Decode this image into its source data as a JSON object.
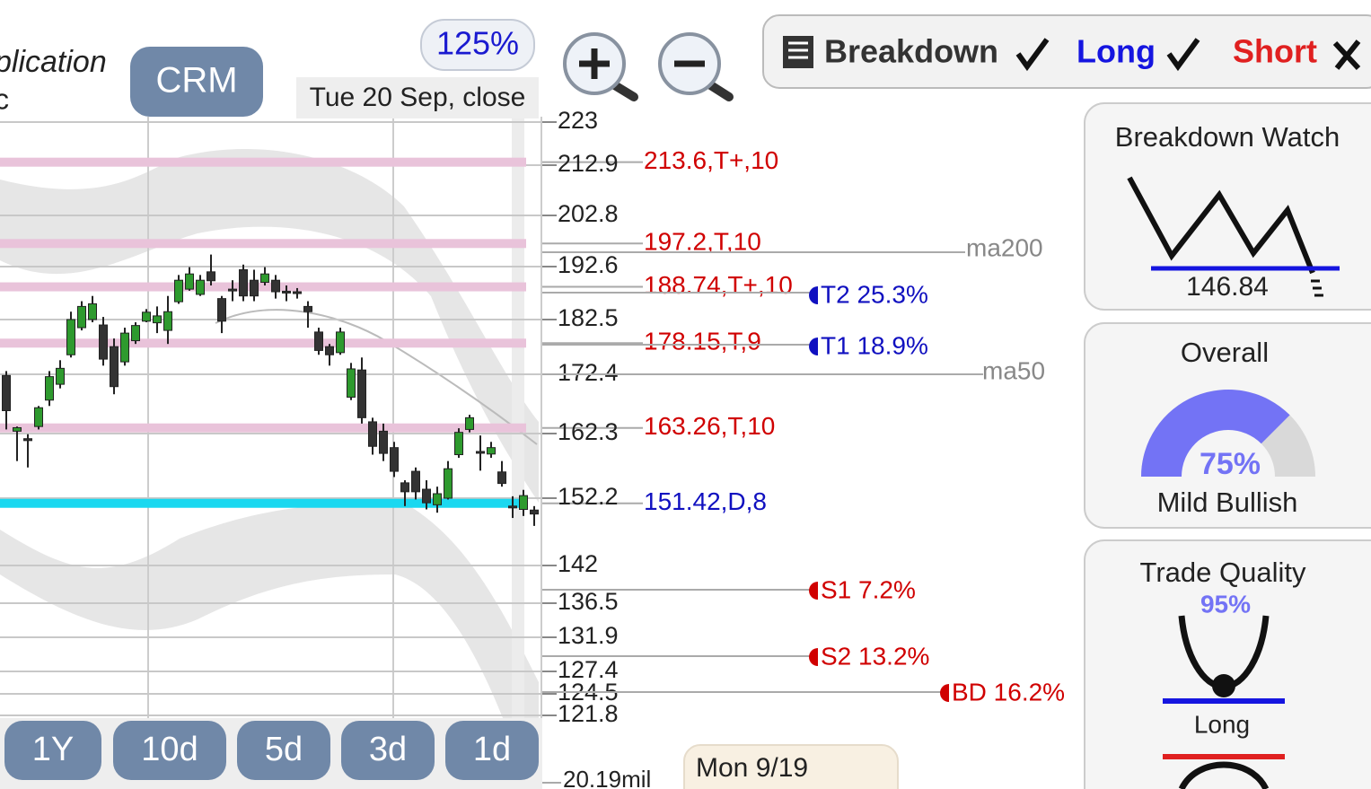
{
  "header": {
    "company_line1": "plication",
    "company_line2": "c",
    "ticker": "CRM",
    "zoom": "125%",
    "date": "Tue 20 Sep, close"
  },
  "toggles": {
    "breakdown": "Breakdown",
    "long": "Long",
    "short": "Short"
  },
  "chart_data": {
    "type": "candlestick",
    "ylim": [
      121.8,
      223
    ],
    "yticks": [
      223,
      212.9,
      202.8,
      192.6,
      182.5,
      172.4,
      162.3,
      152.2,
      142,
      136.5,
      131.9,
      127.4,
      124.5,
      121.8
    ],
    "open": [
      172.2,
      162.7,
      161.5,
      163.5,
      168,
      170.7,
      176,
      181,
      182.5,
      181.5,
      177.5,
      174.7,
      178.6,
      182.2,
      181.9,
      180.5,
      185.9,
      188.3,
      187.3,
      191.6,
      186.5,
      188.3,
      192,
      190,
      189.6,
      190,
      187.9,
      187.8,
      185,
      180.2,
      177.5,
      176.4,
      168.5,
      173.2,
      164.3,
      162.7,
      160.1,
      154.6,
      156.4,
      153.6,
      151.2,
      152.2,
      159,
      163,
      159.5,
      159.1,
      156.3,
      151,
      150.5,
      150.4
    ],
    "high": [
      173,
      163.5,
      162.2,
      167,
      173,
      175,
      184,
      186,
      187,
      183,
      179,
      181,
      182,
      184.5,
      185,
      187,
      191,
      192.5,
      191,
      195,
      187,
      190,
      193,
      192,
      192.5,
      191,
      189,
      188.5,
      186,
      181,
      178,
      181,
      174.5,
      175.5,
      165,
      164,
      161,
      155,
      157,
      155,
      154,
      158,
      163.2,
      165.5,
      162,
      161,
      158,
      152.5,
      153.5,
      151
    ],
    "low": [
      163,
      158,
      157,
      163,
      167,
      170,
      175.5,
      180.5,
      182,
      174,
      169,
      174,
      178,
      182,
      180,
      178,
      185.5,
      188,
      187,
      189,
      180,
      186,
      186,
      186,
      189,
      186.5,
      186,
      186.5,
      181,
      176,
      174,
      176,
      168,
      164,
      159,
      158,
      155.5,
      151,
      152,
      150.5,
      150,
      152,
      158.5,
      162.5,
      156.5,
      158.5,
      154,
      149.2,
      149.5,
      148
    ],
    "close": [
      166.2,
      163.3,
      161.2,
      166.7,
      172,
      173.5,
      182.5,
      185,
      185.5,
      175.2,
      170.3,
      180,
      181.4,
      183.9,
      183.2,
      184,
      190,
      191.2,
      190,
      189.9,
      182.2,
      188,
      187,
      187,
      191.2,
      187.8,
      187.7,
      187.6,
      184,
      176.8,
      176,
      180.2,
      173.4,
      165,
      160.3,
      159.2,
      156.4,
      153.2,
      153.2,
      151.5,
      152.9,
      156.8,
      162.5,
      165,
      159.4,
      160.1,
      154.5,
      150.9,
      152.6,
      149.8
    ],
    "up_color": "#2e9a2e",
    "down_color": "#333333",
    "levels": [
      {
        "value": 213.6,
        "label": "213.6,T+,10",
        "color": "#e9c3da",
        "label_color": "#d00000"
      },
      {
        "value": 197.2,
        "label": "197.2,T,10",
        "color": "#e9c3da",
        "label_color": "#d00000"
      },
      {
        "value": 188.74,
        "label": "188.74,T+,10",
        "color": "#e9c3da",
        "label_color": "#d00000"
      },
      {
        "value": 178.15,
        "label": "178.15,T,9",
        "color": "#e9c3da",
        "label_color": "#d00000"
      },
      {
        "value": 163.26,
        "label": "163.26,T,10",
        "color": "#e9c3da",
        "label_color": "#d00000"
      },
      {
        "value": 151.42,
        "label": "151.42,D,8",
        "color": "#1ad8f0",
        "label_color": "#1010c0"
      }
    ],
    "annotations": [
      "ma200",
      "ma50",
      "T2 25.3%",
      "T1 18.9%",
      "S1 7.2%",
      "S2 13.2%",
      "BD 16.2%"
    ],
    "volume_label": "20.19mil"
  },
  "periods": [
    "1Y",
    "10d",
    "5d",
    "3d",
    "1d"
  ],
  "tooltip": "Mon 9/19",
  "cards": {
    "breakdown_watch": {
      "title": "Breakdown Watch",
      "value": "146.84"
    },
    "overall": {
      "title": "Overall",
      "score": {
        "value": 75,
        "label": "75%"
      },
      "verdict": "Mild Bullish"
    },
    "trade_quality": {
      "title": "Trade Quality",
      "score": "95%",
      "verdict": "Long"
    }
  }
}
